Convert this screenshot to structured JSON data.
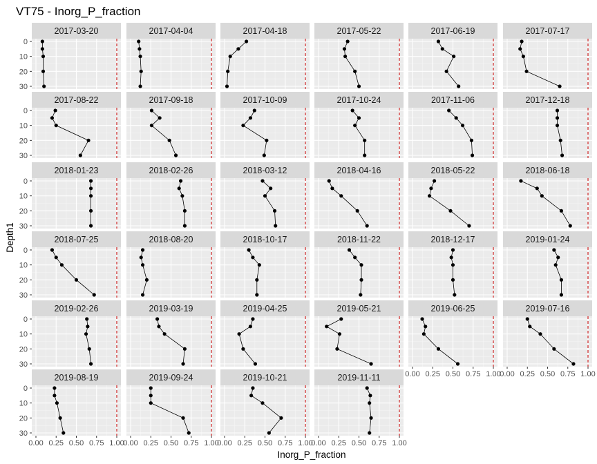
{
  "chart_data": {
    "type": "scatter",
    "title": "VT75  -  Inorg_P_fraction",
    "xlabel": "Inorg_P_fraction",
    "ylabel": "Depth1",
    "xlim": [
      0,
      1
    ],
    "ylim": [
      0,
      30
    ],
    "y_reversed": true,
    "x_ticks": [
      0,
      0.25,
      0.5,
      0.75,
      1
    ],
    "x_tick_labels": [
      "0.00",
      "0.25",
      "0.50",
      "0.75",
      "1.00"
    ],
    "y_ticks": [
      0,
      10,
      20,
      30
    ],
    "y_tick_labels": [
      "0",
      "10",
      "20",
      "30"
    ],
    "reference_line": {
      "x": 1,
      "color": "#cc0000",
      "style": "dashed"
    },
    "panel_background": "#ebebeb",
    "strip_background": "#d9d9d9",
    "point_color": "#000000",
    "line_color": "#000000",
    "grid": true,
    "depths": [
      0,
      5,
      10,
      20,
      30
    ],
    "panels": [
      {
        "label": "2017-03-20",
        "values": [
          0.08,
          0.08,
          0.09,
          0.09,
          0.1
        ]
      },
      {
        "label": "2017-04-04",
        "values": [
          0.1,
          0.11,
          0.12,
          0.13,
          0.12
        ]
      },
      {
        "label": "2017-04-18",
        "values": [
          0.27,
          0.17,
          0.07,
          0.04,
          0.03
        ]
      },
      {
        "label": "2017-05-22",
        "values": [
          0.36,
          0.32,
          0.33,
          0.45,
          0.5
        ]
      },
      {
        "label": "2017-06-19",
        "values": [
          0.32,
          0.37,
          0.51,
          0.42,
          0.57
        ]
      },
      {
        "label": "2017-07-17",
        "values": [
          0.18,
          0.16,
          0.2,
          0.24,
          0.65
        ]
      },
      {
        "label": "2017-08-22",
        "values": [
          0.24,
          0.2,
          0.25,
          0.65,
          0.55
        ]
      },
      {
        "label": "2017-09-18",
        "values": [
          0.26,
          0.36,
          0.26,
          0.48,
          0.56
        ]
      },
      {
        "label": "2017-10-09",
        "values": [
          0.37,
          0.32,
          0.23,
          0.52,
          0.49
        ]
      },
      {
        "label": "2017-10-24",
        "values": [
          0.42,
          0.5,
          0.45,
          0.57,
          0.57
        ]
      },
      {
        "label": "2017-11-06",
        "values": [
          0.45,
          0.54,
          0.62,
          0.73,
          0.74
        ]
      },
      {
        "label": "2017-12-18",
        "values": [
          0.62,
          0.62,
          0.62,
          0.66,
          0.68
        ]
      },
      {
        "label": "2018-01-23",
        "values": [
          0.68,
          0.68,
          0.68,
          0.68,
          0.68
        ]
      },
      {
        "label": "2018-02-26",
        "values": [
          0.62,
          0.6,
          0.64,
          0.67,
          0.67
        ]
      },
      {
        "label": "2018-03-12",
        "values": [
          0.47,
          0.57,
          0.5,
          0.62,
          0.63
        ]
      },
      {
        "label": "2018-04-16",
        "values": [
          0.13,
          0.17,
          0.28,
          0.48,
          0.6
        ]
      },
      {
        "label": "2018-05-22",
        "values": [
          0.27,
          0.23,
          0.21,
          0.47,
          0.7
        ]
      },
      {
        "label": "2018-06-18",
        "values": [
          0.17,
          0.37,
          0.43,
          0.67,
          0.78
        ]
      },
      {
        "label": "2018-07-25",
        "values": [
          0.2,
          0.25,
          0.32,
          0.5,
          0.72
        ]
      },
      {
        "label": "2018-08-20",
        "values": [
          0.15,
          0.13,
          0.15,
          0.2,
          0.15
        ]
      },
      {
        "label": "2018-10-17",
        "values": [
          0.3,
          0.35,
          0.43,
          0.4,
          0.4
        ]
      },
      {
        "label": "2018-11-22",
        "values": [
          0.38,
          0.45,
          0.53,
          0.53,
          0.52
        ]
      },
      {
        "label": "2018-12-17",
        "values": [
          0.5,
          0.48,
          0.5,
          0.5,
          0.52
        ]
      },
      {
        "label": "2019-01-24",
        "values": [
          0.58,
          0.63,
          0.6,
          0.67,
          0.67
        ]
      },
      {
        "label": "2019-02-26",
        "values": [
          0.63,
          0.64,
          0.62,
          0.66,
          0.68
        ]
      },
      {
        "label": "2019-03-19",
        "values": [
          0.33,
          0.35,
          0.42,
          0.67,
          0.65
        ]
      },
      {
        "label": "2019-04-25",
        "values": [
          0.35,
          0.32,
          0.18,
          0.23,
          0.38
        ]
      },
      {
        "label": "2019-05-21",
        "values": [
          0.28,
          0.1,
          0.26,
          0.23,
          0.65
        ]
      },
      {
        "label": "2019-06-25",
        "values": [
          0.12,
          0.16,
          0.14,
          0.32,
          0.56
        ]
      },
      {
        "label": "2019-07-16",
        "values": [
          0.25,
          0.28,
          0.41,
          0.58,
          0.82
        ]
      },
      {
        "label": "2019-08-19",
        "values": [
          0.23,
          0.23,
          0.26,
          0.3,
          0.34
        ]
      },
      {
        "label": "2019-09-24",
        "values": [
          0.25,
          0.25,
          0.25,
          0.65,
          0.72
        ]
      },
      {
        "label": "2019-10-21",
        "values": [
          0.35,
          0.33,
          0.47,
          0.7,
          0.55
        ]
      },
      {
        "label": "2019-11-11",
        "values": [
          0.6,
          0.64,
          0.63,
          0.65,
          0.63
        ]
      }
    ]
  }
}
